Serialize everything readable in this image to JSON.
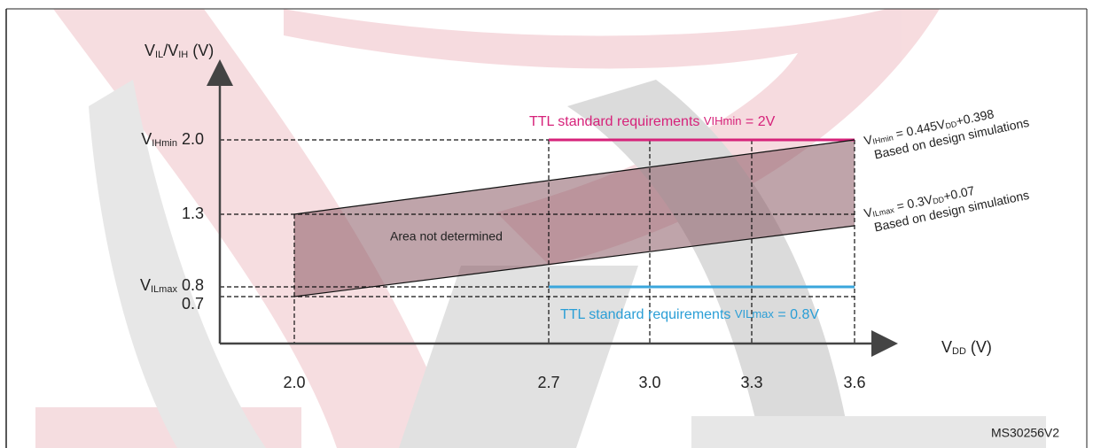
{
  "y_axis_label": {
    "v1": "V",
    "sub1": "IL",
    "v2": "/V",
    "sub2": "IH",
    "unit": " (V)"
  },
  "x_axis_label": {
    "v": "V",
    "sub": "DD",
    "unit": " (V)"
  },
  "y_ticks": [
    {
      "v": "V",
      "sub": "IHmin",
      "value": " 2.0"
    },
    {
      "value": "1.3"
    },
    {
      "v": "V",
      "sub": "ILmax",
      "value": " 0.8"
    },
    {
      "value": "0.7"
    }
  ],
  "x_ticks": [
    "2.0",
    "2.7",
    "3.0",
    "3.3",
    "3.6"
  ],
  "ttl_high": {
    "text": "TTL standard requirements ",
    "sym": "VIHmin",
    "rest": " = 2V"
  },
  "ttl_low": {
    "text": "TTL standard  requirements ",
    "sym": "VILmax",
    "rest": " = 0.8V"
  },
  "area_label": "Area not determined",
  "formula_high": {
    "v": "V",
    "sub": "IHmin",
    "mid": " = 0.445V",
    "sub2": "DD",
    "end": "+0.398",
    "note": "Based on design simulations"
  },
  "formula_low": {
    "v": "V",
    "sub": "ILmax",
    "mid": " = 0.3V",
    "sub2": "DD",
    "end": "+0.07",
    "note": "Based on design  simulations"
  },
  "figure_id": "MS30256V2"
}
